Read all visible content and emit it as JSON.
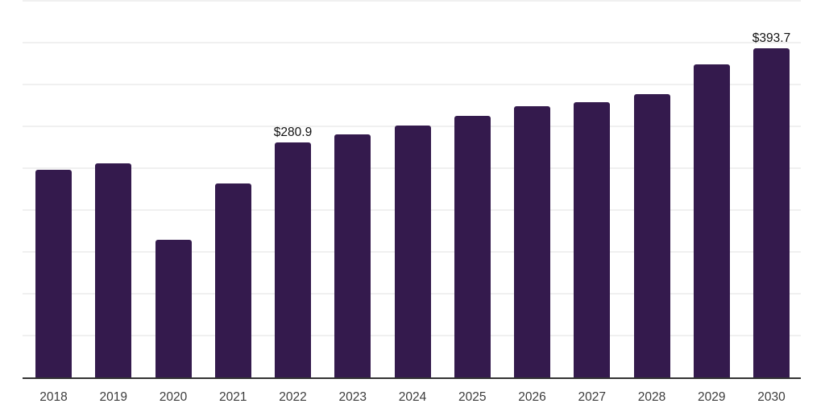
{
  "chart_data": {
    "type": "bar",
    "title": "",
    "xlabel": "",
    "ylabel": "",
    "categories": [
      "2018",
      "2019",
      "2020",
      "2021",
      "2022",
      "2023",
      "2024",
      "2025",
      "2026",
      "2027",
      "2028",
      "2029",
      "2030"
    ],
    "values": [
      247.6,
      255.6,
      164.7,
      231.6,
      280.9,
      290.1,
      301.4,
      312.4,
      323.9,
      329.0,
      338.9,
      373.8,
      393.7
    ],
    "bar_labels": [
      "",
      "",
      "",
      "",
      "$280.9",
      "",
      "",
      "",
      "",
      "",
      "",
      "",
      "$393.7"
    ],
    "currency_prefix": "$",
    "ylim": [
      0,
      450
    ],
    "gridline_step": 50,
    "grid": true,
    "legend": "none",
    "colors": {
      "bar": "#341a4d",
      "gridline": "#f0f0f0",
      "axis_line": "#333333",
      "tick_label": "#3c3c3c",
      "value_label": "#111111",
      "background": "#ffffff"
    }
  }
}
